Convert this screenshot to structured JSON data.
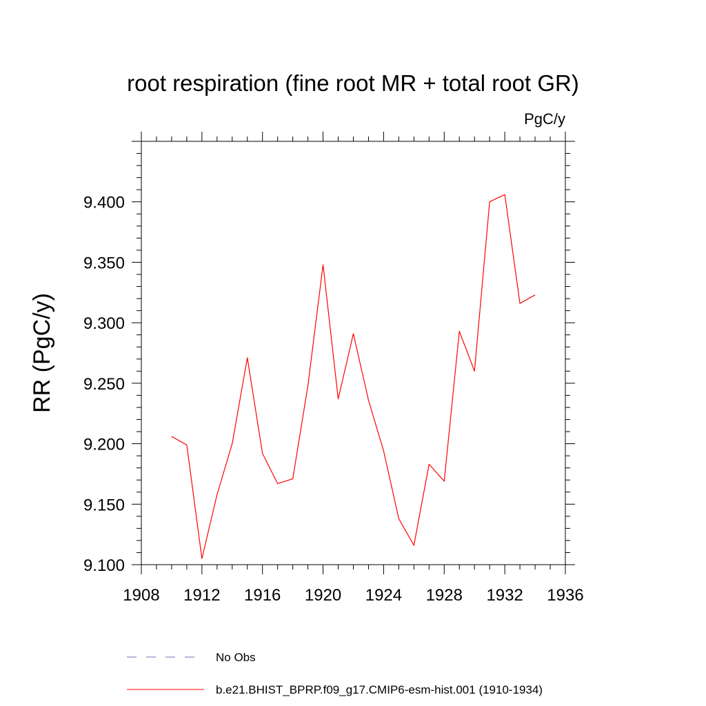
{
  "chart_data": {
    "type": "line",
    "title": "root respiration (fine root MR + total root GR)",
    "units": "PgC/y",
    "ylabel": "RR  (PgC/y)",
    "xlabel": "",
    "xlim": [
      1908,
      1936
    ],
    "ylim": [
      9.1,
      9.45
    ],
    "x_ticks": [
      "1908",
      "1912",
      "1916",
      "1920",
      "1924",
      "1928",
      "1932",
      "1936"
    ],
    "y_ticks": [
      "9.100",
      "9.150",
      "9.200",
      "9.250",
      "9.300",
      "9.350",
      "9.400"
    ],
    "grid": false,
    "legend_position": "bottom",
    "series": [
      {
        "name": "b.e21.BHIST_BPRP.f09_g17.CMIP6-esm-hist.001 (1910-1934)",
        "color": "#ff0000",
        "style": "solid",
        "x": [
          1910,
          1911,
          1912,
          1913,
          1914,
          1915,
          1916,
          1917,
          1918,
          1919,
          1920,
          1921,
          1922,
          1923,
          1924,
          1925,
          1926,
          1927,
          1928,
          1929,
          1930,
          1931,
          1932,
          1933,
          1934
        ],
        "values": [
          9.206,
          9.199,
          9.105,
          9.158,
          9.2,
          9.271,
          9.192,
          9.167,
          9.171,
          9.248,
          9.348,
          9.237,
          9.291,
          9.236,
          9.194,
          9.138,
          9.116,
          9.183,
          9.169,
          9.293,
          9.26,
          9.4,
          9.406,
          9.316,
          9.323
        ]
      }
    ],
    "legend": [
      {
        "label": "No Obs",
        "color": "#7b68b0",
        "style": "dashed"
      },
      {
        "label": "b.e21.BHIST_BPRP.f09_g17.CMIP6-esm-hist.001 (1910-1934)",
        "color": "#ff0000",
        "style": "solid"
      }
    ]
  }
}
